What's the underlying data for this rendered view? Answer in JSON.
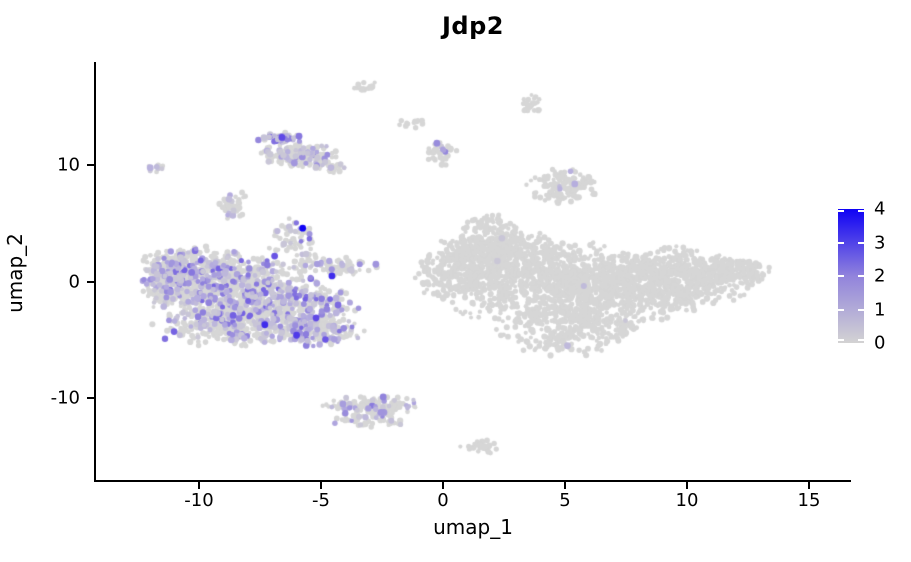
{
  "chart_data": {
    "type": "scatter",
    "title": "Jdp2",
    "xlabel": "umap_1",
    "ylabel": "umap_2",
    "x_ticks": [
      -10,
      -5,
      0,
      5,
      10,
      15
    ],
    "y_ticks": [
      -10,
      0,
      10
    ],
    "xlim": [
      -14.22,
      16.68
    ],
    "ylim": [
      -17.04,
      18.88
    ],
    "grid": false,
    "legend_position": "right",
    "color_scale": {
      "range": [
        0,
        4
      ],
      "breaks": [
        4,
        3,
        2,
        1,
        0
      ],
      "low": "#d3d3d3",
      "mid": "#9183dc",
      "high": "#0f02f5"
    },
    "point_color_stops": [
      "#d3d3d3",
      "#b6aede",
      "#9183dc",
      "#5f48e6",
      "#0f02f5"
    ],
    "gray_color": "#d6d6d6",
    "seed": 42,
    "clusters": [
      {
        "name": "left-main-nw",
        "cx": -9.9,
        "cy": 0.3,
        "rx": 1.25,
        "ry": 1.4,
        "n": 420,
        "frac": 0.28,
        "max": 2.6
      },
      {
        "name": "left-main-center",
        "cx": -8.4,
        "cy": -1.0,
        "rx": 1.7,
        "ry": 1.7,
        "n": 560,
        "frac": 0.28,
        "max": 2.6
      },
      {
        "name": "left-main-se",
        "cx": -6.2,
        "cy": -2.6,
        "rx": 1.4,
        "ry": 1.4,
        "n": 380,
        "frac": 0.28,
        "max": 2.6
      },
      {
        "name": "left-west-tip",
        "cx": -11.5,
        "cy": -0.4,
        "rx": 0.4,
        "ry": 1.0,
        "n": 110,
        "frac": 0.25,
        "max": 2.2
      },
      {
        "name": "left-south",
        "cx": -9.0,
        "cy": -3.9,
        "rx": 1.5,
        "ry": 0.9,
        "n": 200,
        "frac": 0.28,
        "max": 2.6
      },
      {
        "name": "left-south-east",
        "cx": -5.0,
        "cy": -4.3,
        "rx": 0.9,
        "ry": 0.7,
        "n": 110,
        "frac": 0.3,
        "max": 2.8
      },
      {
        "name": "left-top-arm",
        "cx": -6.1,
        "cy": 3.3,
        "rx": 0.55,
        "ry": 1.1,
        "n": 70,
        "frac": 0.25,
        "max": 2.4
      },
      {
        "name": "left-right-arm",
        "cx": -4.3,
        "cy": 1.3,
        "rx": 0.9,
        "ry": 0.4,
        "n": 80,
        "frac": 0.2,
        "max": 1.8
      },
      {
        "name": "left-nw-edge",
        "cx": -10.9,
        "cy": 1.6,
        "rx": 0.8,
        "ry": 0.6,
        "n": 90,
        "frac": 0.25,
        "max": 2.2
      },
      {
        "name": "right-left-edge",
        "cx": 0.3,
        "cy": 0.8,
        "rx": 0.8,
        "ry": 1.4,
        "n": 130,
        "frac": 0.003,
        "max": 0.7
      },
      {
        "name": "right-upper-left",
        "cx": 1.6,
        "cy": 1.8,
        "rx": 1.2,
        "ry": 1.1,
        "n": 200,
        "frac": 0.003,
        "max": 0.7
      },
      {
        "name": "right-lobe-1",
        "cx": 3.6,
        "cy": 0.2,
        "rx": 2.2,
        "ry": 2.0,
        "n": 700,
        "frac": 0.003,
        "max": 0.7
      },
      {
        "name": "right-lobe-2",
        "cx": 6.6,
        "cy": -0.8,
        "rx": 2.2,
        "ry": 1.9,
        "n": 700,
        "frac": 0.003,
        "max": 0.7
      },
      {
        "name": "right-lobe-3",
        "cx": 9.6,
        "cy": 0.3,
        "rx": 1.6,
        "ry": 1.4,
        "n": 480,
        "frac": 0.002,
        "max": 0.6
      },
      {
        "name": "right-east-tip",
        "cx": 11.9,
        "cy": 0.9,
        "rx": 0.9,
        "ry": 0.55,
        "n": 180,
        "frac": 0.002,
        "max": 0.5
      },
      {
        "name": "right-bottom-bump",
        "cx": 4.9,
        "cy": -4.3,
        "rx": 1.4,
        "ry": 1.1,
        "n": 220,
        "frac": 0.004,
        "max": 0.8
      },
      {
        "name": "right-top-bump",
        "cx": 1.9,
        "cy": 4.3,
        "rx": 0.6,
        "ry": 0.8,
        "n": 80,
        "frac": 0.003,
        "max": 0.6
      },
      {
        "name": "right-top-ridge",
        "cx": 2.6,
        "cy": 2.9,
        "rx": 1.3,
        "ry": 0.7,
        "n": 150,
        "frac": 0.003,
        "max": 0.6
      },
      {
        "name": "tiny-west",
        "cx": -11.75,
        "cy": 9.7,
        "rx": 0.2,
        "ry": 0.2,
        "n": 10,
        "frac": 0.5,
        "max": 0.9
      },
      {
        "name": "small-mid-left",
        "cx": -8.6,
        "cy": 6.6,
        "rx": 0.3,
        "ry": 0.7,
        "n": 40,
        "frac": 0.12,
        "max": 1.2
      },
      {
        "name": "topleft-main",
        "cx": -5.9,
        "cy": 10.9,
        "rx": 0.8,
        "ry": 0.55,
        "n": 160,
        "frac": 0.3,
        "max": 1.8
      },
      {
        "name": "topleft-purple-cap",
        "cx": -6.7,
        "cy": 12.3,
        "rx": 0.45,
        "ry": 0.3,
        "n": 45,
        "frac": 0.8,
        "max": 3.2
      },
      {
        "name": "topleft-arm",
        "cx": -4.6,
        "cy": 9.8,
        "rx": 0.4,
        "ry": 0.28,
        "n": 26,
        "frac": 0.1,
        "max": 1.0
      },
      {
        "name": "tiny-top-1",
        "cx": -3.05,
        "cy": 16.8,
        "rx": 0.35,
        "ry": 0.2,
        "n": 16,
        "frac": 0,
        "max": 0
      },
      {
        "name": "tiny-top-2",
        "cx": -1.2,
        "cy": 13.6,
        "rx": 0.3,
        "ry": 0.28,
        "n": 13,
        "frac": 0,
        "max": 0
      },
      {
        "name": "small-top-mid",
        "cx": -0.05,
        "cy": 11.0,
        "rx": 0.35,
        "ry": 0.5,
        "n": 40,
        "frac": 0.1,
        "max": 2.0
      },
      {
        "name": "tiny-top-3",
        "cx": 3.6,
        "cy": 15.2,
        "rx": 0.3,
        "ry": 0.45,
        "n": 25,
        "frac": 0,
        "max": 0
      },
      {
        "name": "small-right-upper",
        "cx": 4.9,
        "cy": 8.2,
        "rx": 0.75,
        "ry": 0.75,
        "n": 130,
        "frac": 0.03,
        "max": 1.2
      },
      {
        "name": "bottom-main",
        "cx": -2.8,
        "cy": -10.7,
        "rx": 1.1,
        "ry": 0.45,
        "n": 140,
        "frac": 0.18,
        "max": 2.2
      },
      {
        "name": "bottom-tail",
        "cx": -2.9,
        "cy": -11.9,
        "rx": 0.9,
        "ry": 0.35,
        "n": 45,
        "frac": 0.12,
        "max": 1.5
      },
      {
        "name": "tiny-bottom",
        "cx": 1.5,
        "cy": -14.2,
        "rx": 0.4,
        "ry": 0.33,
        "n": 28,
        "frac": 0,
        "max": 0
      }
    ],
    "highlight_points": [
      {
        "x": -5.75,
        "y": 4.6,
        "v": 4.0
      },
      {
        "x": -4.55,
        "y": 0.5,
        "v": 3.4
      },
      {
        "x": -6.0,
        "y": -4.6,
        "v": 3.2
      },
      {
        "x": -7.3,
        "y": -3.7,
        "v": 3.4
      },
      {
        "x": -8.6,
        "y": -2.9,
        "v": 2.6
      },
      {
        "x": -10.3,
        "y": 0.8,
        "v": 2.2
      },
      {
        "x": -6.9,
        "y": 2.2,
        "v": 2.8
      },
      {
        "x": -5.2,
        "y": -3.1,
        "v": 3.0
      },
      {
        "x": -4.3,
        "y": -2.0,
        "v": 2.4
      },
      {
        "x": -9.6,
        "y": -1.8,
        "v": 2.0
      },
      {
        "x": -11.2,
        "y": 0.2,
        "v": 1.8
      },
      {
        "x": -6.6,
        "y": 12.4,
        "v": 3.0
      },
      {
        "x": -5.9,
        "y": 12.5,
        "v": 2.2
      },
      {
        "x": -2.45,
        "y": -9.9,
        "v": 2.0
      },
      {
        "x": -4.1,
        "y": -10.5,
        "v": 1.4
      },
      {
        "x": -0.25,
        "y": 11.9,
        "v": 1.8
      },
      {
        "x": -2.75,
        "y": 1.5,
        "v": 1.6
      },
      {
        "x": 5.4,
        "y": 8.4,
        "v": 1.0
      },
      {
        "x": 5.1,
        "y": -5.5,
        "v": 0.7
      },
      {
        "x": -12.0,
        "y": 9.8,
        "v": 0.9
      }
    ]
  }
}
